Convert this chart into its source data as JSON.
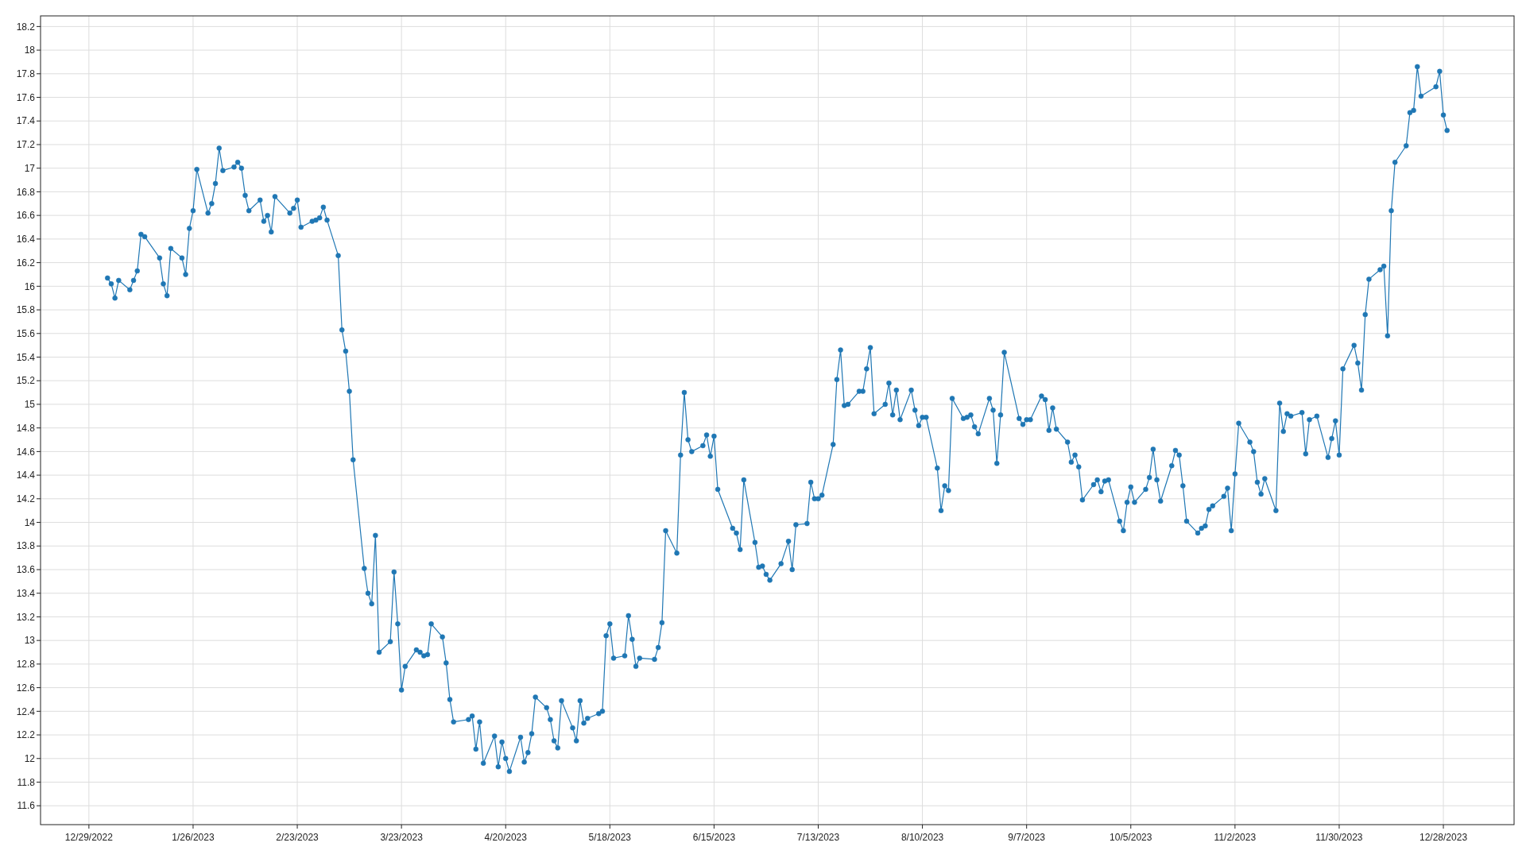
{
  "chart_data": {
    "type": "line",
    "marker": "circle",
    "grid": true,
    "xlim": [
      "2022-12-16",
      "2024-01-16"
    ],
    "xticks": [
      {
        "value": "2022-12-29",
        "label": "12/29/2022"
      },
      {
        "value": "2023-01-26",
        "label": "1/26/2023"
      },
      {
        "value": "2023-02-23",
        "label": "2/23/2023"
      },
      {
        "value": "2023-03-23",
        "label": "3/23/2023"
      },
      {
        "value": "2023-04-20",
        "label": "4/20/2023"
      },
      {
        "value": "2023-05-18",
        "label": "5/18/2023"
      },
      {
        "value": "2023-06-15",
        "label": "6/15/2023"
      },
      {
        "value": "2023-07-13",
        "label": "7/13/2023"
      },
      {
        "value": "2023-08-10",
        "label": "8/10/2023"
      },
      {
        "value": "2023-09-07",
        "label": "9/7/2023"
      },
      {
        "value": "2023-10-05",
        "label": "10/5/2023"
      },
      {
        "value": "2023-11-02",
        "label": "11/2/2023"
      },
      {
        "value": "2023-11-30",
        "label": "11/30/2023"
      },
      {
        "value": "2023-12-28",
        "label": "12/28/2023"
      }
    ],
    "ylim": [
      11.44,
      18.29
    ],
    "yticks": [
      11.6,
      11.8,
      12,
      12.2,
      12.4,
      12.6,
      12.8,
      13,
      13.2,
      13.4,
      13.6,
      13.8,
      14,
      14.2,
      14.4,
      14.6,
      14.8,
      15,
      15.2,
      15.4,
      15.6,
      15.8,
      16,
      16.2,
      16.4,
      16.6,
      16.8,
      17,
      17.2,
      17.4,
      17.6,
      17.8,
      18,
      18.2
    ],
    "series": [
      {
        "color": "#1f77b4",
        "x": [
          "2023-01-03",
          "2023-01-04",
          "2023-01-05",
          "2023-01-06",
          "2023-01-09",
          "2023-01-10",
          "2023-01-11",
          "2023-01-12",
          "2023-01-13",
          "2023-01-17",
          "2023-01-18",
          "2023-01-19",
          "2023-01-20",
          "2023-01-23",
          "2023-01-24",
          "2023-01-25",
          "2023-01-26",
          "2023-01-27",
          "2023-01-30",
          "2023-01-31",
          "2023-02-01",
          "2023-02-02",
          "2023-02-03",
          "2023-02-06",
          "2023-02-07",
          "2023-02-08",
          "2023-02-09",
          "2023-02-10",
          "2023-02-13",
          "2023-02-14",
          "2023-02-15",
          "2023-02-16",
          "2023-02-17",
          "2023-02-21",
          "2023-02-22",
          "2023-02-23",
          "2023-02-24",
          "2023-02-27",
          "2023-02-28",
          "2023-03-01",
          "2023-03-02",
          "2023-03-03",
          "2023-03-06",
          "2023-03-07",
          "2023-03-08",
          "2023-03-09",
          "2023-03-10",
          "2023-03-13",
          "2023-03-14",
          "2023-03-15",
          "2023-03-16",
          "2023-03-17",
          "2023-03-20",
          "2023-03-21",
          "2023-03-22",
          "2023-03-23",
          "2023-03-24",
          "2023-03-27",
          "2023-03-28",
          "2023-03-29",
          "2023-03-30",
          "2023-03-31",
          "2023-04-03",
          "2023-04-04",
          "2023-04-05",
          "2023-04-06",
          "2023-04-10",
          "2023-04-11",
          "2023-04-12",
          "2023-04-13",
          "2023-04-14",
          "2023-04-17",
          "2023-04-18",
          "2023-04-19",
          "2023-04-20",
          "2023-04-21",
          "2023-04-24",
          "2023-04-25",
          "2023-04-26",
          "2023-04-27",
          "2023-04-28",
          "2023-05-01",
          "2023-05-02",
          "2023-05-03",
          "2023-05-04",
          "2023-05-05",
          "2023-05-08",
          "2023-05-09",
          "2023-05-10",
          "2023-05-11",
          "2023-05-12",
          "2023-05-15",
          "2023-05-16",
          "2023-05-17",
          "2023-05-18",
          "2023-05-19",
          "2023-05-22",
          "2023-05-23",
          "2023-05-24",
          "2023-05-25",
          "2023-05-26",
          "2023-05-30",
          "2023-05-31",
          "2023-06-01",
          "2023-06-02",
          "2023-06-05",
          "2023-06-06",
          "2023-06-07",
          "2023-06-08",
          "2023-06-09",
          "2023-06-12",
          "2023-06-13",
          "2023-06-14",
          "2023-06-15",
          "2023-06-16",
          "2023-06-20",
          "2023-06-21",
          "2023-06-22",
          "2023-06-23",
          "2023-06-26",
          "2023-06-27",
          "2023-06-28",
          "2023-06-29",
          "2023-06-30",
          "2023-07-03",
          "2023-07-05",
          "2023-07-06",
          "2023-07-07",
          "2023-07-10",
          "2023-07-11",
          "2023-07-12",
          "2023-07-13",
          "2023-07-14",
          "2023-07-17",
          "2023-07-18",
          "2023-07-19",
          "2023-07-20",
          "2023-07-21",
          "2023-07-24",
          "2023-07-25",
          "2023-07-26",
          "2023-07-27",
          "2023-07-28",
          "2023-07-31",
          "2023-08-01",
          "2023-08-02",
          "2023-08-03",
          "2023-08-04",
          "2023-08-07",
          "2023-08-08",
          "2023-08-09",
          "2023-08-10",
          "2023-08-11",
          "2023-08-14",
          "2023-08-15",
          "2023-08-16",
          "2023-08-17",
          "2023-08-18",
          "2023-08-21",
          "2023-08-22",
          "2023-08-23",
          "2023-08-24",
          "2023-08-25",
          "2023-08-28",
          "2023-08-29",
          "2023-08-30",
          "2023-08-31",
          "2023-09-01",
          "2023-09-05",
          "2023-09-06",
          "2023-09-07",
          "2023-09-08",
          "2023-09-11",
          "2023-09-12",
          "2023-09-13",
          "2023-09-14",
          "2023-09-15",
          "2023-09-18",
          "2023-09-19",
          "2023-09-20",
          "2023-09-21",
          "2023-09-22",
          "2023-09-25",
          "2023-09-26",
          "2023-09-27",
          "2023-09-28",
          "2023-09-29",
          "2023-10-02",
          "2023-10-03",
          "2023-10-04",
          "2023-10-05",
          "2023-10-06",
          "2023-10-09",
          "2023-10-10",
          "2023-10-11",
          "2023-10-12",
          "2023-10-13",
          "2023-10-16",
          "2023-10-17",
          "2023-10-18",
          "2023-10-19",
          "2023-10-20",
          "2023-10-23",
          "2023-10-24",
          "2023-10-25",
          "2023-10-26",
          "2023-10-27",
          "2023-10-30",
          "2023-10-31",
          "2023-11-01",
          "2023-11-02",
          "2023-11-03",
          "2023-11-06",
          "2023-11-07",
          "2023-11-08",
          "2023-11-09",
          "2023-11-10",
          "2023-11-13",
          "2023-11-14",
          "2023-11-15",
          "2023-11-16",
          "2023-11-17",
          "2023-11-20",
          "2023-11-21",
          "2023-11-22",
          "2023-11-24",
          "2023-11-27",
          "2023-11-28",
          "2023-11-29",
          "2023-11-30",
          "2023-12-01",
          "2023-12-04",
          "2023-12-05",
          "2023-12-06",
          "2023-12-07",
          "2023-12-08",
          "2023-12-11",
          "2023-12-12",
          "2023-12-13",
          "2023-12-14",
          "2023-12-15",
          "2023-12-18",
          "2023-12-19",
          "2023-12-20",
          "2023-12-21",
          "2023-12-22",
          "2023-12-26",
          "2023-12-27",
          "2023-12-28",
          "2023-12-29"
        ],
        "values": [
          16.07,
          16.02,
          15.9,
          16.05,
          15.97,
          16.05,
          16.13,
          16.44,
          16.42,
          16.24,
          16.02,
          15.92,
          16.32,
          16.24,
          16.1,
          16.49,
          16.64,
          16.99,
          16.62,
          16.7,
          16.87,
          17.17,
          16.98,
          17.01,
          17.05,
          17.0,
          16.77,
          16.64,
          16.73,
          16.55,
          16.6,
          16.46,
          16.76,
          16.62,
          16.66,
          16.73,
          16.5,
          16.55,
          16.56,
          16.58,
          16.67,
          16.56,
          16.26,
          15.63,
          15.45,
          15.11,
          14.53,
          13.61,
          13.4,
          13.31,
          13.89,
          12.9,
          12.99,
          13.58,
          13.14,
          12.58,
          12.78,
          12.92,
          12.9,
          12.87,
          12.88,
          13.14,
          13.03,
          12.81,
          12.5,
          12.31,
          12.33,
          12.36,
          12.08,
          12.31,
          11.96,
          12.19,
          11.93,
          12.14,
          12.0,
          11.89,
          12.18,
          11.97,
          12.05,
          12.21,
          12.52,
          12.43,
          12.33,
          12.15,
          12.09,
          12.49,
          12.26,
          12.15,
          12.49,
          12.3,
          12.34,
          12.38,
          12.4,
          13.04,
          13.14,
          12.85,
          12.87,
          13.21,
          13.01,
          12.78,
          12.85,
          12.84,
          12.94,
          13.15,
          13.93,
          13.74,
          14.57,
          15.1,
          14.7,
          14.6,
          14.65,
          14.74,
          14.56,
          14.73,
          14.28,
          13.95,
          13.91,
          13.77,
          14.36,
          13.83,
          13.62,
          13.63,
          13.56,
          13.51,
          13.65,
          13.84,
          13.6,
          13.98,
          13.99,
          14.34,
          14.2,
          14.2,
          14.23,
          14.66,
          15.21,
          15.46,
          14.99,
          15.0,
          15.11,
          15.11,
          15.3,
          15.48,
          14.92,
          15.0,
          15.18,
          14.91,
          15.12,
          14.87,
          15.12,
          14.95,
          14.82,
          14.89,
          14.89,
          14.46,
          14.1,
          14.31,
          14.27,
          15.05,
          14.88,
          14.89,
          14.91,
          14.81,
          14.75,
          15.05,
          14.95,
          14.5,
          14.91,
          15.44,
          14.88,
          14.83,
          14.87,
          14.87,
          15.07,
          15.04,
          14.78,
          14.97,
          14.79,
          14.68,
          14.51,
          14.57,
          14.47,
          14.19,
          14.32,
          14.36,
          14.26,
          14.35,
          14.36,
          14.01,
          13.93,
          14.17,
          14.3,
          14.17,
          14.28,
          14.38,
          14.62,
          14.36,
          14.18,
          14.48,
          14.61,
          14.57,
          14.31,
          14.01,
          13.91,
          13.95,
          13.97,
          14.11,
          14.14,
          14.22,
          14.29,
          13.93,
          14.41,
          14.84,
          14.68,
          14.6,
          14.34,
          14.24,
          14.37,
          14.1,
          15.01,
          14.77,
          14.92,
          14.9,
          14.93,
          14.58,
          14.87,
          14.9,
          14.55,
          14.71,
          14.86,
          14.57,
          15.3,
          15.5,
          15.35,
          15.12,
          15.76,
          16.06,
          16.14,
          16.17,
          15.58,
          16.64,
          17.05,
          17.19,
          17.47,
          17.49,
          17.86,
          17.61,
          17.69,
          17.82,
          17.45,
          17.32
        ]
      }
    ]
  }
}
